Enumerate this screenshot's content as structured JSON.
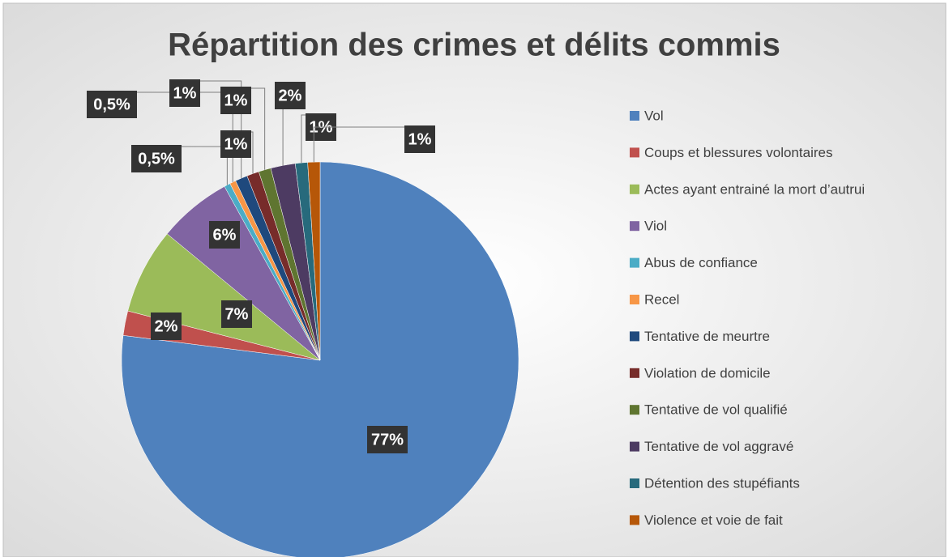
{
  "chart_data": {
    "type": "pie",
    "title": "Répartition des crimes et délits commis",
    "categories": [
      "Vol",
      "Coups et blessures volontaires",
      "Actes ayant entrainé la mort d’autrui",
      "Viol",
      "Abus de confiance",
      "Recel",
      "Tentative de meurtre",
      "Violation de domicile",
      "Tentative de vol qualifié",
      "Tentative de vol aggravé",
      "Détention des stupéfiants",
      "Violence et voie de fait"
    ],
    "values": [
      77,
      2,
      7,
      6,
      0.5,
      0.5,
      1,
      1,
      1,
      2,
      1,
      1
    ],
    "value_labels": [
      "77%",
      "2%",
      "7%",
      "6%",
      "0,5%",
      "0,5%",
      "1%",
      "1%",
      "1%",
      "2%",
      "1%",
      "1%"
    ],
    "colors": [
      "#4f81bd",
      "#c0504d",
      "#9bbb59",
      "#8064a2",
      "#4bacc6",
      "#f79646",
      "#1f497d",
      "#772c2a",
      "#5f7530",
      "#4d3b62",
      "#276a7c",
      "#b65708"
    ],
    "legend": "right"
  }
}
